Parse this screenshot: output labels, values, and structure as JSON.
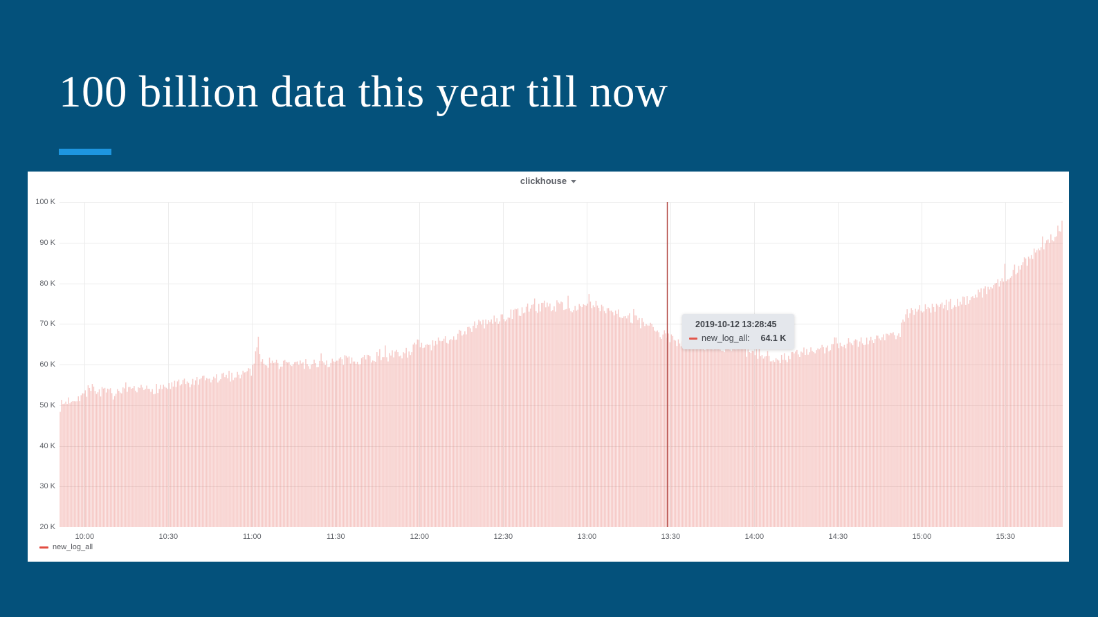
{
  "slide": {
    "title": "100 billion data this year till now",
    "background_color": "#04517B",
    "accent_color": "#1E96E0"
  },
  "panel": {
    "title": "clickhouse",
    "legend_label": "new_log_all"
  },
  "tooltip": {
    "timestamp": "2019-10-12 13:28:45",
    "series_label": "new_log_all:",
    "value": "64.1 K"
  },
  "chart_data": {
    "type": "bar",
    "title": "clickhouse",
    "series_name": "new_log_all",
    "series_color": "#E24D42",
    "bar_fill_opacity": 0.3,
    "grid": true,
    "grid_color": "#ECECEC",
    "legend_position": "bottom-left",
    "date": "2019-10-12",
    "x_axis": {
      "unit": "minutes after midnight",
      "start_minute": 591,
      "end_minute": 950.5,
      "tick_minutes": [
        600,
        630,
        660,
        690,
        720,
        750,
        780,
        810,
        840,
        870,
        900,
        930
      ],
      "tick_labels": [
        "10:00",
        "10:30",
        "11:00",
        "11:30",
        "12:00",
        "12:30",
        "13:00",
        "13:30",
        "14:00",
        "14:30",
        "15:00",
        "15:30"
      ]
    },
    "y_axis": {
      "min": 20000,
      "max": 100000,
      "tick_values": [
        100,
        90,
        80,
        70,
        60,
        50,
        40,
        30,
        20
      ],
      "tick_labels": [
        "100 K",
        "90 K",
        "80 K",
        "70 K",
        "60 K",
        "50 K",
        "40 K",
        "30 K",
        "20 K"
      ]
    },
    "bar_step_minutes": 0.5,
    "noise_kilo": 1.4,
    "envelope_points_minute_kilo": [
      [
        591,
        50.5
      ],
      [
        594,
        52
      ],
      [
        600,
        53.5
      ],
      [
        603,
        55
      ],
      [
        607,
        54
      ],
      [
        612,
        53.5
      ],
      [
        620,
        54.5
      ],
      [
        630,
        55.5
      ],
      [
        640,
        56.5
      ],
      [
        648,
        57.5
      ],
      [
        655,
        58.5
      ],
      [
        660,
        59.5
      ],
      [
        661,
        62.5
      ],
      [
        662,
        67.5
      ],
      [
        663,
        63
      ],
      [
        665,
        61.5
      ],
      [
        670,
        61
      ],
      [
        680,
        61
      ],
      [
        690,
        61.5
      ],
      [
        700,
        62.5
      ],
      [
        710,
        63
      ],
      [
        716,
        64
      ],
      [
        719,
        66
      ],
      [
        722,
        65
      ],
      [
        728,
        66.5
      ],
      [
        734,
        68.5
      ],
      [
        740,
        70.5
      ],
      [
        746,
        71.5
      ],
      [
        752,
        73
      ],
      [
        758,
        74.5
      ],
      [
        764,
        75
      ],
      [
        772,
        75.5
      ],
      [
        778,
        74.5
      ],
      [
        782,
        75.5
      ],
      [
        786,
        75
      ],
      [
        792,
        73.5
      ],
      [
        798,
        71.5
      ],
      [
        804,
        69.5
      ],
      [
        809,
        67.5
      ],
      [
        814,
        66.5
      ],
      [
        820,
        66
      ],
      [
        828,
        65
      ],
      [
        834,
        64.5
      ],
      [
        840,
        63.5
      ],
      [
        845,
        63
      ],
      [
        850,
        62.5
      ],
      [
        855,
        63.5
      ],
      [
        860,
        64
      ],
      [
        865,
        64.5
      ],
      [
        870,
        66
      ],
      [
        876,
        66.5
      ],
      [
        882,
        67
      ],
      [
        888,
        68
      ],
      [
        892,
        68.5
      ],
      [
        894,
        73
      ],
      [
        897,
        74.5
      ],
      [
        900,
        74.5
      ],
      [
        906,
        75
      ],
      [
        912,
        76
      ],
      [
        918,
        77.5
      ],
      [
        924,
        79.5
      ],
      [
        930,
        82.5
      ],
      [
        936,
        85.5
      ],
      [
        941,
        88.5
      ],
      [
        945,
        91
      ],
      [
        948,
        93
      ],
      [
        950.5,
        95.5
      ]
    ],
    "crosshair": {
      "minute": 808.75,
      "time": "13:28:45",
      "value_kilo": 64.1,
      "color": "#B0413C"
    }
  }
}
